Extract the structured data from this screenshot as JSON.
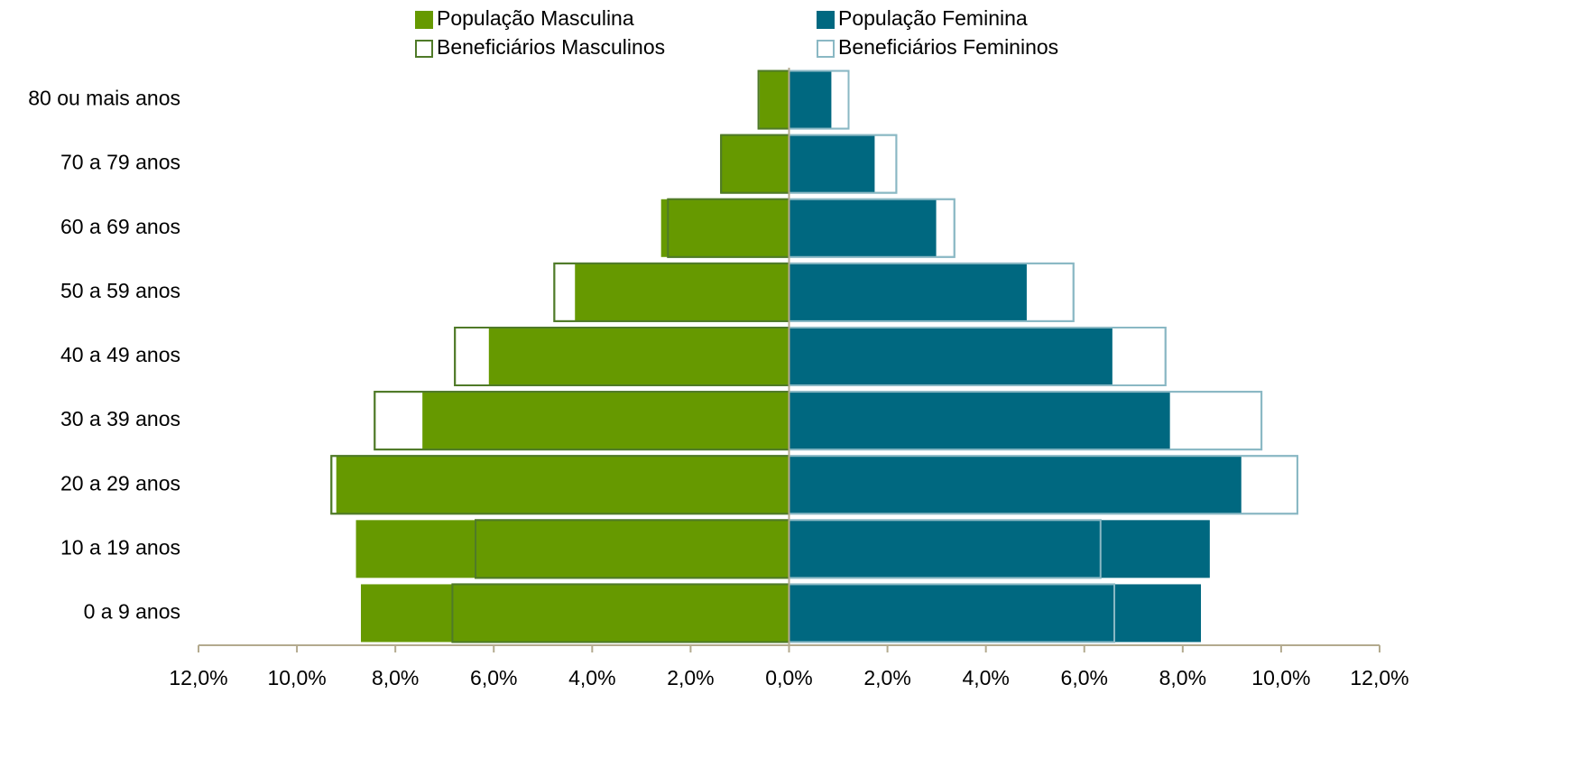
{
  "chart_data": {
    "type": "pyramid",
    "categories": [
      "80 ou mais anos",
      "70 a 79 anos",
      "60 a 69 anos",
      "50 a 59 anos",
      "40 a 49 anos",
      "30 a 39 anos",
      "20 a 29 anos",
      "10 a 19 anos",
      "0 a 9 anos"
    ],
    "series": [
      {
        "name": "População Masculina",
        "color": "#669900",
        "outline": false,
        "values": [
          -0.6,
          -1.4,
          -2.6,
          -4.35,
          -6.1,
          -7.45,
          -9.2,
          -8.8,
          -8.7
        ]
      },
      {
        "name": "População Feminina",
        "color": "#006880",
        "outline": false,
        "values": [
          0.86,
          1.74,
          2.99,
          4.83,
          6.57,
          7.74,
          9.19,
          8.55,
          8.37
        ]
      },
      {
        "name": "Beneficiários Masculinos",
        "color": "#4f7a28",
        "outline": true,
        "values": [
          -0.62,
          -1.38,
          -2.46,
          -4.77,
          -6.79,
          -8.42,
          -9.3,
          -6.37,
          -6.84
        ]
      },
      {
        "name": "Beneficiários Femininos",
        "color": "#8ab8c4",
        "outline": true,
        "values": [
          1.21,
          2.18,
          3.36,
          5.78,
          7.65,
          9.6,
          10.33,
          6.33,
          6.61
        ]
      }
    ],
    "xlim": [
      -12,
      12
    ],
    "xticks": [
      {
        "value": -12,
        "label": "12,0%"
      },
      {
        "value": -10,
        "label": "10,0%"
      },
      {
        "value": -8,
        "label": "8,0%"
      },
      {
        "value": -6,
        "label": "6,0%"
      },
      {
        "value": -4,
        "label": "4,0%"
      },
      {
        "value": -2,
        "label": "2,0%"
      },
      {
        "value": 0,
        "label": "0,0%"
      },
      {
        "value": 2,
        "label": "2,0%"
      },
      {
        "value": 4,
        "label": "4,0%"
      },
      {
        "value": 6,
        "label": "6,0%"
      },
      {
        "value": 8,
        "label": "8,0%"
      },
      {
        "value": 10,
        "label": "10,0%"
      },
      {
        "value": 12,
        "label": "12,0%"
      }
    ]
  }
}
